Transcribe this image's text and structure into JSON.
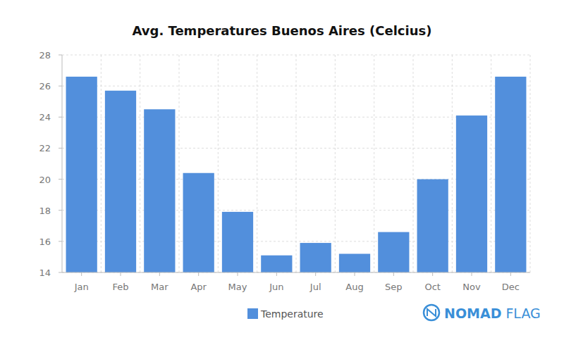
{
  "chart_data": {
    "type": "bar",
    "title": "Avg. Temperatures Buenos Aires (Celcius)",
    "categories": [
      "Jan",
      "Feb",
      "Mar",
      "Apr",
      "May",
      "Jun",
      "Jul",
      "Aug",
      "Sep",
      "Oct",
      "Nov",
      "Dec"
    ],
    "series": [
      {
        "name": "Temperature",
        "color": "#528fdc",
        "values": [
          26.6,
          25.7,
          24.5,
          20.4,
          17.9,
          15.1,
          15.9,
          15.2,
          16.6,
          20.0,
          24.1,
          26.6
        ]
      }
    ],
    "ylim": [
      14,
      28
    ],
    "yticks": [
      14,
      16,
      18,
      20,
      22,
      24,
      26,
      28
    ],
    "grid": true,
    "legend": "bottom",
    "annotations": [
      "NOMAD",
      "FLAG"
    ]
  }
}
